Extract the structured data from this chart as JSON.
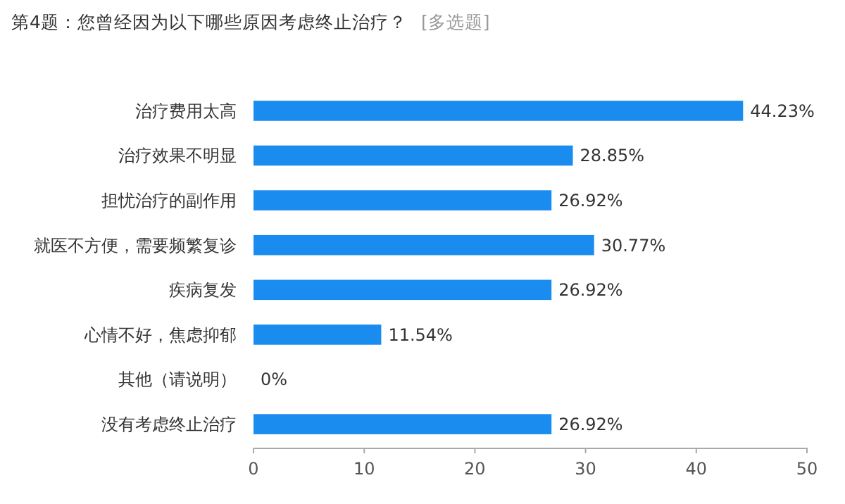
{
  "chart_data": {
    "type": "bar",
    "orientation": "horizontal",
    "title": "第4题：您曾经因为以下哪些原因考虑终止治疗？",
    "subtitle": "[多选题]",
    "categories": [
      "治疗费用太高",
      "治疗效果不明显",
      "担忧治疗的副作用",
      "就医不方便，需要频繁复诊",
      "疾病复发",
      "心情不好，焦虑抑郁",
      "其他（请说明）",
      "没有考虑终止治疗"
    ],
    "values": [
      44.23,
      28.85,
      26.92,
      30.77,
      26.92,
      11.54,
      0,
      26.92
    ],
    "value_labels": [
      "44.23%",
      "28.85%",
      "26.92%",
      "30.77%",
      "26.92%",
      "11.54%",
      "0%",
      "26.92%"
    ],
    "color": "#1a8cf0",
    "xlim": [
      0,
      50
    ],
    "xticks": [
      0,
      10,
      20,
      30,
      40,
      50
    ],
    "grid": false
  }
}
